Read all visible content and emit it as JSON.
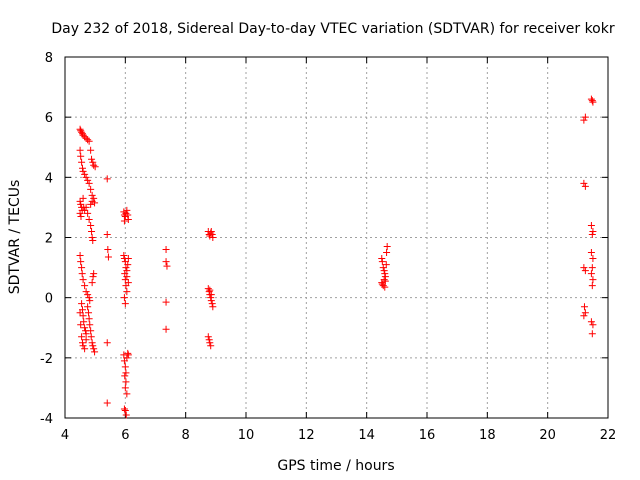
{
  "chart_data": {
    "type": "scatter",
    "title": "Day 232 of 2018, Sidereal Day-to-day VTEC variation (SDTVAR) for receiver kokr",
    "xlabel": "GPS time / hours",
    "ylabel": "SDTVAR / TECUs",
    "xlim": [
      4,
      22
    ],
    "ylim": [
      -4,
      8
    ],
    "xticks": [
      4,
      6,
      8,
      10,
      12,
      14,
      16,
      18,
      20,
      22
    ],
    "yticks": [
      -4,
      -2,
      0,
      2,
      4,
      6,
      8
    ],
    "xtick_labels": [
      "4",
      "6",
      "8",
      "10",
      "12",
      "14",
      "16",
      "18",
      "20",
      "22"
    ],
    "ytick_labels": [
      "-4",
      "-2",
      "0",
      "2",
      "4",
      "6",
      "8"
    ],
    "grid": true,
    "marker": "+",
    "color": "#ff0000",
    "series": [
      {
        "name": "SDTVAR",
        "points": [
          [
            4.5,
            5.6
          ],
          [
            4.52,
            5.55
          ],
          [
            4.55,
            5.5
          ],
          [
            4.58,
            5.45
          ],
          [
            4.6,
            5.4
          ],
          [
            4.65,
            5.35
          ],
          [
            4.7,
            5.3
          ],
          [
            4.75,
            5.25
          ],
          [
            4.8,
            5.2
          ],
          [
            4.85,
            4.9
          ],
          [
            4.88,
            4.6
          ],
          [
            4.5,
            4.9
          ],
          [
            4.52,
            4.7
          ],
          [
            4.55,
            4.5
          ],
          [
            4.58,
            4.3
          ],
          [
            4.6,
            4.2
          ],
          [
            4.65,
            4.1
          ],
          [
            4.7,
            4.0
          ],
          [
            4.75,
            3.9
          ],
          [
            4.8,
            3.8
          ],
          [
            4.85,
            3.6
          ],
          [
            4.9,
            3.4
          ],
          [
            4.92,
            4.5
          ],
          [
            4.95,
            4.4
          ],
          [
            5.0,
            4.35
          ],
          [
            4.5,
            3.2
          ],
          [
            4.52,
            3.1
          ],
          [
            4.55,
            3.0
          ],
          [
            4.57,
            2.9
          ],
          [
            4.6,
            3.3
          ],
          [
            4.62,
            3.0
          ],
          [
            4.65,
            2.9
          ],
          [
            4.5,
            2.8
          ],
          [
            4.53,
            2.7
          ],
          [
            4.7,
            3.0
          ],
          [
            4.75,
            2.8
          ],
          [
            4.8,
            2.6
          ],
          [
            4.85,
            2.4
          ],
          [
            4.88,
            2.2
          ],
          [
            4.9,
            2.0
          ],
          [
            4.92,
            1.9
          ],
          [
            4.85,
            3.1
          ],
          [
            4.9,
            3.2
          ],
          [
            4.95,
            3.3
          ],
          [
            4.98,
            3.15
          ],
          [
            4.5,
            1.4
          ],
          [
            4.52,
            1.2
          ],
          [
            4.55,
            1.0
          ],
          [
            4.57,
            0.8
          ],
          [
            4.6,
            0.6
          ],
          [
            4.65,
            0.4
          ],
          [
            4.7,
            0.2
          ],
          [
            4.75,
            0.1
          ],
          [
            4.8,
            0.0
          ],
          [
            4.82,
            -0.1
          ],
          [
            4.9,
            0.5
          ],
          [
            4.93,
            0.7
          ],
          [
            4.95,
            0.8
          ],
          [
            4.55,
            -0.2
          ],
          [
            4.58,
            -0.4
          ],
          [
            4.6,
            -0.6
          ],
          [
            4.62,
            -0.8
          ],
          [
            4.65,
            -1.0
          ],
          [
            4.68,
            -1.1
          ],
          [
            4.7,
            -1.2
          ],
          [
            4.5,
            -0.5
          ],
          [
            4.52,
            -0.9
          ],
          [
            4.75,
            -0.3
          ],
          [
            4.78,
            -0.5
          ],
          [
            4.8,
            -0.7
          ],
          [
            4.82,
            -0.9
          ],
          [
            4.85,
            -1.1
          ],
          [
            4.87,
            -1.3
          ],
          [
            4.9,
            -1.5
          ],
          [
            4.92,
            -1.6
          ],
          [
            4.95,
            -1.7
          ],
          [
            4.98,
            -1.8
          ],
          [
            4.55,
            -1.3
          ],
          [
            4.58,
            -1.5
          ],
          [
            4.6,
            -1.6
          ],
          [
            4.65,
            -1.7
          ],
          [
            4.7,
            -1.4
          ],
          [
            5.4,
            3.95
          ],
          [
            5.4,
            2.1
          ],
          [
            5.42,
            1.6
          ],
          [
            5.44,
            1.35
          ],
          [
            5.4,
            -1.5
          ],
          [
            5.4,
            -3.5
          ],
          [
            5.95,
            2.85
          ],
          [
            5.97,
            2.75
          ],
          [
            6.0,
            2.7
          ],
          [
            6.02,
            2.8
          ],
          [
            6.05,
            2.9
          ],
          [
            6.08,
            2.75
          ],
          [
            6.1,
            2.6
          ],
          [
            5.97,
            2.55
          ],
          [
            5.95,
            1.4
          ],
          [
            5.97,
            1.3
          ],
          [
            6.0,
            1.2
          ],
          [
            6.02,
            1.0
          ],
          [
            6.05,
            0.9
          ],
          [
            6.08,
            1.1
          ],
          [
            6.1,
            1.3
          ],
          [
            5.98,
            0.8
          ],
          [
            6.0,
            0.6
          ],
          [
            6.02,
            0.4
          ],
          [
            6.05,
            0.2
          ],
          [
            5.97,
            0.0
          ],
          [
            6.0,
            -0.2
          ],
          [
            6.05,
            0.7
          ],
          [
            6.1,
            0.5
          ],
          [
            5.95,
            -1.9
          ],
          [
            5.97,
            -2.1
          ],
          [
            6.0,
            -2.3
          ],
          [
            6.02,
            -2.5
          ],
          [
            6.05,
            -2.0
          ],
          [
            6.08,
            -1.85
          ],
          [
            6.1,
            -1.9
          ],
          [
            5.98,
            -2.6
          ],
          [
            6.02,
            -2.8
          ],
          [
            6.05,
            -3.2
          ],
          [
            6.0,
            -3.0
          ],
          [
            5.97,
            -3.7
          ],
          [
            6.0,
            -3.75
          ],
          [
            6.03,
            -3.9
          ],
          [
            7.35,
            1.6
          ],
          [
            7.35,
            1.2
          ],
          [
            7.38,
            1.05
          ],
          [
            7.35,
            -0.15
          ],
          [
            7.35,
            -1.05
          ],
          [
            8.75,
            2.2
          ],
          [
            8.78,
            2.1
          ],
          [
            8.8,
            2.05
          ],
          [
            8.83,
            2.15
          ],
          [
            8.85,
            2.2
          ],
          [
            8.88,
            2.1
          ],
          [
            8.9,
            2.0
          ],
          [
            8.75,
            0.3
          ],
          [
            8.78,
            0.2
          ],
          [
            8.8,
            0.1
          ],
          [
            8.83,
            0.0
          ],
          [
            8.85,
            -0.1
          ],
          [
            8.88,
            -0.2
          ],
          [
            8.9,
            -0.3
          ],
          [
            8.8,
            0.25
          ],
          [
            8.85,
            0.1
          ],
          [
            8.75,
            -1.3
          ],
          [
            8.78,
            -1.4
          ],
          [
            8.8,
            -1.5
          ],
          [
            8.83,
            -1.6
          ],
          [
            14.5,
            1.3
          ],
          [
            14.52,
            1.2
          ],
          [
            14.55,
            1.0
          ],
          [
            14.58,
            0.9
          ],
          [
            14.6,
            0.8
          ],
          [
            14.62,
            0.7
          ],
          [
            14.65,
            1.1
          ],
          [
            14.68,
            1.7
          ],
          [
            14.66,
            1.5
          ],
          [
            14.5,
            0.5
          ],
          [
            14.55,
            0.4
          ],
          [
            14.6,
            0.35
          ],
          [
            14.52,
            0.45
          ],
          [
            14.58,
            0.6
          ],
          [
            14.62,
            0.55
          ],
          [
            21.2,
            5.9
          ],
          [
            21.25,
            6.0
          ],
          [
            21.2,
            3.8
          ],
          [
            21.25,
            3.7
          ],
          [
            21.2,
            1.0
          ],
          [
            21.25,
            0.9
          ],
          [
            21.22,
            -0.3
          ],
          [
            21.2,
            -0.6
          ],
          [
            21.25,
            -0.5
          ],
          [
            21.45,
            6.6
          ],
          [
            21.5,
            6.5
          ],
          [
            21.48,
            6.55
          ],
          [
            21.45,
            2.4
          ],
          [
            21.5,
            2.2
          ],
          [
            21.48,
            2.1
          ],
          [
            21.45,
            1.5
          ],
          [
            21.5,
            1.3
          ],
          [
            21.48,
            1.0
          ],
          [
            21.45,
            0.8
          ],
          [
            21.5,
            0.6
          ],
          [
            21.48,
            0.4
          ],
          [
            21.45,
            -0.8
          ],
          [
            21.5,
            -0.9
          ],
          [
            21.48,
            -1.2
          ]
        ]
      }
    ]
  }
}
